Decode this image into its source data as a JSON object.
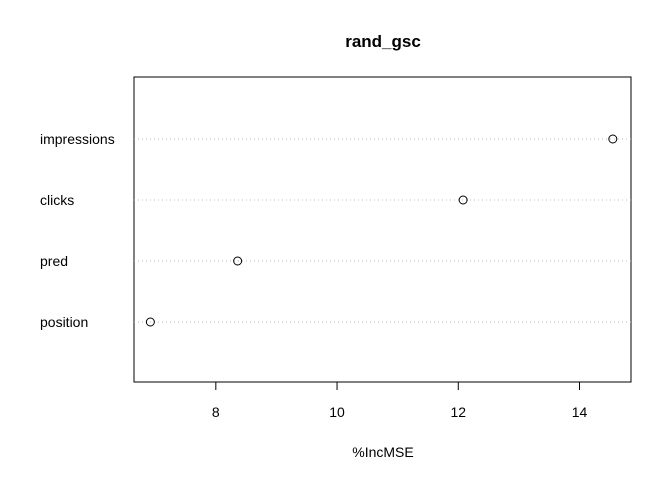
{
  "chart_data": {
    "type": "scatter",
    "title": "rand_gsc",
    "xlabel": "%IncMSE",
    "ylabel": "",
    "categories": [
      "impressions",
      "clicks",
      "pred",
      "position"
    ],
    "values": [
      14.55,
      12.08,
      8.36,
      6.92
    ],
    "xlim": [
      6.65,
      14.85
    ],
    "xticks": [
      8,
      10,
      12,
      14
    ],
    "grid": "dotted horizontal guide lines per category",
    "legend": "none",
    "point_style": "open circle"
  }
}
